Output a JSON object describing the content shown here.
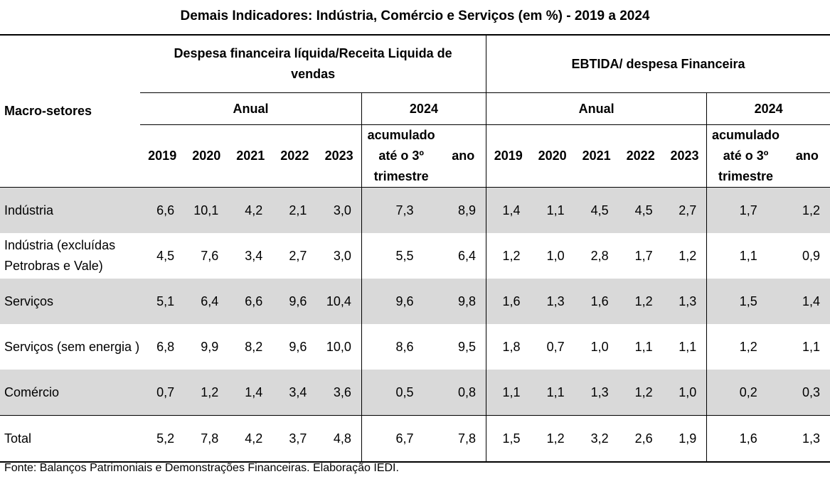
{
  "title": "Demais Indicadores: Indústria, Comércio e Serviços (em %) - 2019 a 2024",
  "header": {
    "row_label": "Macro-setores",
    "group1": "Despesa financeira líquida/Receita Liquida de vendas",
    "group2": "EBTIDA/ despesa Financeira",
    "anual": "Anual",
    "y2024": "2024",
    "years": [
      "2019",
      "2020",
      "2021",
      "2022",
      "2023"
    ],
    "acumulado": "acumulado até o 3º trimestre",
    "ano": "ano"
  },
  "rows": [
    {
      "label": "Indústria",
      "values": [
        "6,6",
        "10,1",
        "4,2",
        "2,1",
        "3,0",
        "7,3",
        "8,9",
        "1,4",
        "1,1",
        "4,5",
        "4,5",
        "2,7",
        "1,7",
        "1,2"
      ]
    },
    {
      "label": "Indústria  (excluídas Petrobras e Vale)",
      "values": [
        "4,5",
        "7,6",
        "3,4",
        "2,7",
        "3,0",
        "5,5",
        "6,4",
        "1,2",
        "1,0",
        "2,8",
        "1,7",
        "1,2",
        "1,1",
        "0,9"
      ]
    },
    {
      "label": "Serviços",
      "values": [
        "5,1",
        "6,4",
        "6,6",
        "9,6",
        "10,4",
        "9,6",
        "9,8",
        "1,6",
        "1,3",
        "1,6",
        "1,2",
        "1,3",
        "1,5",
        "1,4"
      ]
    },
    {
      "label": "Serviços (sem energia )",
      "values": [
        "6,8",
        "9,9",
        "8,2",
        "9,6",
        "10,0",
        "8,6",
        "9,5",
        "1,8",
        "0,7",
        "1,0",
        "1,1",
        "1,1",
        "1,2",
        "1,1"
      ]
    },
    {
      "label": "Comércio",
      "values": [
        "0,7",
        "1,2",
        "1,4",
        "3,4",
        "3,6",
        "0,5",
        "0,8",
        "1,1",
        "1,1",
        "1,3",
        "1,2",
        "1,0",
        "0,2",
        "0,3"
      ]
    },
    {
      "label": "Total",
      "values": [
        "5,2",
        "7,8",
        "4,2",
        "3,7",
        "4,8",
        "6,7",
        "7,8",
        "1,5",
        "1,2",
        "3,2",
        "2,6",
        "1,9",
        "1,6",
        "1,3"
      ]
    }
  ],
  "source": "Fonte: Balanços Patrimoniais e Demonstrações Financeiras. Elaboração IEDI."
}
